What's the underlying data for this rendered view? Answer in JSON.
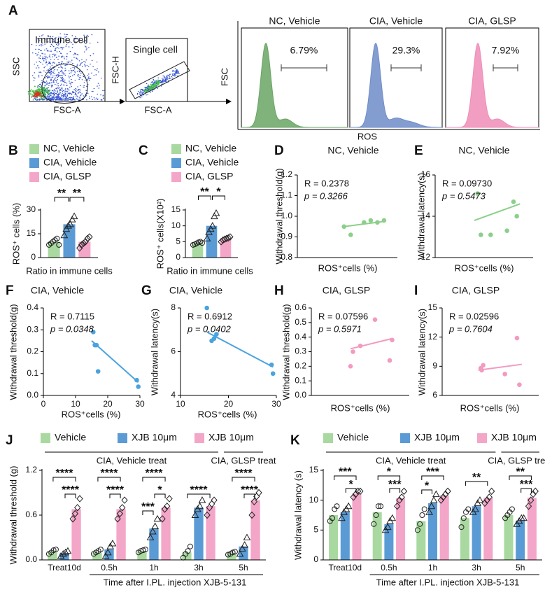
{
  "flow": {
    "panel": "A",
    "gates": [
      {
        "title": "Immune cell",
        "xlabel": "FSC-A",
        "ylabel": "SSC"
      },
      {
        "title": "Single cell",
        "xlabel": "FSC-A",
        "ylabel": "FSC-H"
      }
    ],
    "histogram_ylabel": "FSC",
    "histogram_xlabel": "ROS",
    "histograms": [
      {
        "title": "NC, Vehicle",
        "percent": "6.79%",
        "color": "#6aa464"
      },
      {
        "title": "CIA, Vehicle",
        "percent": "29.3%",
        "color": "#6f8cc8"
      },
      {
        "title": "CIA, GLSP",
        "percent": "7.92%",
        "color": "#ee8db7"
      }
    ]
  },
  "chart_data": [
    {
      "type": "bar",
      "panel": "B",
      "ylabel": "ROS⁺ cells (%)",
      "xlabel": "Ratio in immune cells",
      "ylim": [
        0,
        30
      ],
      "yticks": [
        0,
        15,
        30
      ],
      "series": [
        {
          "name": "NC, Vehicle",
          "color": "#a9d9a0",
          "values": [
            10
          ],
          "points": [
            [
              8,
              9,
              10,
              11,
              12,
              8
            ]
          ]
        },
        {
          "name": "CIA, Vehicle",
          "color": "#5b9bd5",
          "values": [
            21
          ],
          "points": [
            [
              14,
              18,
              20,
              21,
              24,
              26
            ]
          ]
        },
        {
          "name": "CIA, GLSP",
          "color": "#f3a6c8",
          "values": [
            10
          ],
          "points": [
            [
              6,
              8,
              9,
              10,
              12,
              13
            ]
          ]
        }
      ],
      "annotations": [
        "**",
        "**"
      ]
    },
    {
      "type": "bar",
      "panel": "C",
      "ylabel": "ROS⁺ cells(X10²)",
      "xlabel": "Ratio in immune cells",
      "ylim": [
        0,
        15
      ],
      "yticks": [
        0,
        5,
        10,
        15
      ],
      "series": [
        {
          "name": "NC, Vehicle",
          "color": "#a9d9a0",
          "values": [
            4.6
          ],
          "points": [
            [
              4,
              4.2,
              4.5,
              4.8,
              5,
              4.6
            ]
          ]
        },
        {
          "name": "CIA, Vehicle",
          "color": "#5b9bd5",
          "values": [
            10
          ],
          "points": [
            [
              6,
              8,
              9,
              10,
              13,
              14
            ]
          ]
        },
        {
          "name": "CIA, GLSP",
          "color": "#f3a6c8",
          "values": [
            5.8
          ],
          "points": [
            [
              5,
              5.5,
              5.8,
              6,
              6.2,
              6.5
            ]
          ]
        }
      ],
      "annotations": [
        "**",
        "*"
      ]
    },
    {
      "type": "scatter",
      "panel": "D",
      "title": "NC, Vehicle",
      "annotations": [
        "R = 0.2378",
        "p = 0.3266"
      ],
      "ylabel": "Withdrawal threshold(g)",
      "xlabel": "ROS⁺cells  (%)",
      "color": "#8ccf8a",
      "xlim": [
        0,
        15
      ],
      "ylim": [
        0.8,
        1.2
      ],
      "yticks": [
        0.8,
        0.9,
        {
          "value": 1,
          "label": "1.0"
        },
        1.1,
        1.2
      ],
      "x": [
        7,
        8,
        10,
        11,
        12,
        13
      ],
      "values": [
        0.95,
        0.91,
        0.97,
        0.98,
        0.97,
        0.98
      ],
      "fit_x": [
        7,
        13
      ],
      "fit_values": [
        0.95,
        0.975
      ]
    },
    {
      "type": "scatter",
      "panel": "E",
      "title": "NC, Vehicle",
      "annotations": [
        "R = 0.09730",
        "p = 0.5473"
      ],
      "ylabel": "Withdrawal latency(s)",
      "xlabel": "ROS⁺cells  (%)",
      "color": "#8ccf8a",
      "xlim": [
        0,
        15
      ],
      "ylim": [
        12,
        16
      ],
      "yticks": [
        12,
        14,
        16
      ],
      "x": [
        6.5,
        7,
        8.5,
        11,
        12,
        12.5
      ],
      "values": [
        15.1,
        13.1,
        13.1,
        13.3,
        14.7,
        14
      ],
      "fit_x": [
        6,
        13
      ],
      "fit_values": [
        13.8,
        14.6
      ]
    },
    {
      "type": "scatter",
      "panel": "F",
      "title": "CIA, Vehicle",
      "annotations": [
        "R = 0.7115",
        "p = 0.0348"
      ],
      "ylabel": "Withdrawal threshold(g)",
      "xlabel": "ROS⁺cells  (%)",
      "color": "#4aa3df",
      "xlim": [
        0,
        30
      ],
      "xticks": [
        0,
        10,
        20,
        30
      ],
      "ylim": [
        0,
        0.4
      ],
      "yticks": [
        {
          "value": 0,
          "label": "0.0"
        },
        0.1,
        0.2,
        0.3,
        0.4
      ],
      "x": [
        15.5,
        16,
        16.5,
        17,
        29,
        29.5
      ],
      "values": [
        0.29,
        0.23,
        0.23,
        0.11,
        0.07,
        0.04
      ],
      "fit_x": [
        15,
        29.5
      ],
      "fit_values": [
        0.25,
        0.06
      ]
    },
    {
      "type": "scatter",
      "panel": "G",
      "title": "CIA, Vehicle",
      "annotations": [
        "R = 0.6912",
        "p = 0.0402"
      ],
      "ylabel": "Withdrawal latency(s)",
      "xlabel": "ROS⁺cells  (%)",
      "color": "#4aa3df",
      "xlim": [
        10,
        30
      ],
      "xticks": [
        10,
        20,
        30
      ],
      "ylim": [
        4,
        8
      ],
      "yticks": [
        4,
        6,
        8
      ],
      "x": [
        15.5,
        16.5,
        17,
        17.5,
        29,
        29.3
      ],
      "values": [
        8,
        6.5,
        6.6,
        6.8,
        5.4,
        5
      ],
      "fit_x": [
        15.5,
        29.3
      ],
      "fit_values": [
        6.9,
        5.3
      ]
    },
    {
      "type": "scatter",
      "panel": "H",
      "title": "CIA, GLSP",
      "annotations": [
        "R = 0.07596",
        "p = 0.5971"
      ],
      "ylabel": "Withdrawal threshold(g)",
      "xlabel": "ROS⁺cells  (%)",
      "color": "#f29ac0",
      "xlim": [
        0,
        20
      ],
      "ylim": [
        0,
        0.6
      ],
      "yticks": [
        {
          "value": 0,
          "label": "0.0"
        },
        0.1,
        0.2,
        0.3,
        0.4,
        0.5,
        0.6
      ],
      "x": [
        8,
        8.5,
        10,
        13,
        16,
        16.5
      ],
      "values": [
        0.2,
        0.3,
        0.34,
        0.52,
        0.24,
        0.38
      ],
      "fit_x": [
        8,
        16.5
      ],
      "fit_values": [
        0.32,
        0.39
      ]
    },
    {
      "type": "scatter",
      "panel": "I",
      "title": "CIA, GLSP",
      "annotations": [
        "R = 0.02596",
        "p = 0.7604"
      ],
      "ylabel": "Withdrawal latency(s)",
      "xlabel": "ROS⁺cells  (%)",
      "color": "#f29ac0",
      "xlim": [
        0,
        20
      ],
      "ylim": [
        6,
        15
      ],
      "yticks": [
        6,
        9,
        12,
        15
      ],
      "x": [
        8,
        8.2,
        8.5,
        13,
        15.5,
        16
      ],
      "values": [
        8.8,
        8.6,
        9.1,
        8.2,
        11.9,
        7.1
      ],
      "fit_x": [
        7.5,
        16.5
      ],
      "fit_values": [
        8.6,
        9.2
      ]
    },
    {
      "type": "bar",
      "panel": "J",
      "ylabel": "Withdrawal threshold (g)",
      "xlabel": "Time after I.PL. injection XJB-5-131",
      "categories": [
        "Treat10d",
        "0.5h",
        "1h",
        "3h",
        "5h"
      ],
      "group_headers": [
        "CIA, Vehicle treat",
        "CIA, GLSP treat"
      ],
      "ylim": [
        0,
        1.2
      ],
      "yticks": [
        {
          "value": 0,
          "label": "0.0"
        },
        0.6,
        1.2
      ],
      "series": [
        {
          "name": "Vehicle",
          "color": "#a9d9a0",
          "values": [
            0.11,
            0.1,
            0.12,
            0.1,
            0.09
          ],
          "points": [
            [
              0.08,
              0.1,
              0.13,
              0.14
            ],
            [
              0.08,
              0.1,
              0.12,
              0.14
            ],
            [
              0.1,
              0.12,
              0.13,
              0.14
            ],
            [
              0.03,
              0.08,
              0.12,
              0.18
            ],
            [
              0.07,
              0.08,
              0.1,
              0.11
            ]
          ]
        },
        {
          "name": "XJB 10μm",
          "color": "#5b9bd5",
          "values": [
            0.09,
            0.14,
            0.42,
            0.7,
            0.18
          ],
          "points": [
            [
              0.05,
              0.08,
              0.1,
              0.12
            ],
            [
              0.05,
              0.1,
              0.18,
              0.22
            ],
            [
              0.3,
              0.38,
              0.45,
              0.55
            ],
            [
              0.6,
              0.68,
              0.72,
              0.8
            ],
            [
              0.08,
              0.15,
              0.2,
              0.3
            ]
          ]
        },
        {
          "name": "XJB 10μm",
          "color": "#f3a6c8",
          "values": [
            0.68,
            0.68,
            0.7,
            0.72,
            0.8
          ],
          "points": [
            [
              0.55,
              0.62,
              0.7,
              0.82
            ],
            [
              0.55,
              0.62,
              0.7,
              0.8
            ],
            [
              0.55,
              0.68,
              0.72,
              0.82
            ],
            [
              0.6,
              0.7,
              0.75,
              0.8
            ],
            [
              0.6,
              0.78,
              0.85,
              0.9
            ]
          ]
        }
      ],
      "annotations": [
        "****",
        "****",
        "****",
        "****",
        "****",
        "*",
        "***",
        "****",
        "****",
        "****"
      ]
    },
    {
      "type": "bar",
      "panel": "K",
      "ylabel": "Withdrawal latency (s)",
      "xlabel": "Time after I.PL. injection XJB-5-131",
      "categories": [
        "Treat10d",
        "0.5h",
        "1h",
        "3h",
        "5h"
      ],
      "group_headers": [
        "CIA, Vehicle treat",
        "CIA, GLSP treat"
      ],
      "ylim": [
        0,
        15
      ],
      "yticks": [
        0,
        5,
        10,
        15
      ],
      "series": [
        {
          "name": "Vehicle",
          "color": "#a9d9a0",
          "values": [
            7.5,
            8,
            6.5,
            7,
            7.5
          ],
          "points": [
            [
              6.5,
              7,
              8.5,
              9
            ],
            [
              6,
              7.5,
              9,
              9
            ],
            [
              5,
              6,
              7.5,
              8.5
            ],
            [
              5.5,
              7,
              8,
              8.5
            ],
            [
              7,
              7.5,
              8,
              8.5
            ]
          ]
        },
        {
          "name": "XJB 10μm",
          "color": "#5b9bd5",
          "values": [
            8,
            6,
            9.5,
            9,
            6.5
          ],
          "points": [
            [
              7,
              8,
              8.5,
              9
            ],
            [
              5,
              5.5,
              6.5,
              7
            ],
            [
              8,
              9,
              10,
              11
            ],
            [
              8,
              8.5,
              9.5,
              10
            ],
            [
              6,
              6.5,
              7,
              7
            ]
          ]
        },
        {
          "name": "XJB 10μm",
          "color": "#f3a6c8",
          "values": [
            11.1,
            10.3,
            10.8,
            10.4,
            10.4
          ],
          "points": [
            [
              10.5,
              11,
              11.5,
              11.5
            ],
            [
              9,
              10,
              10.5,
              11.5
            ],
            [
              10,
              10.5,
              11,
              11.5
            ],
            [
              9.5,
              10,
              10.5,
              11.5
            ],
            [
              9,
              10,
              11,
              11.5
            ]
          ]
        }
      ],
      "annotations": [
        "***",
        "*",
        "*",
        "***",
        "***",
        "*",
        "**",
        "**",
        "***"
      ]
    }
  ]
}
